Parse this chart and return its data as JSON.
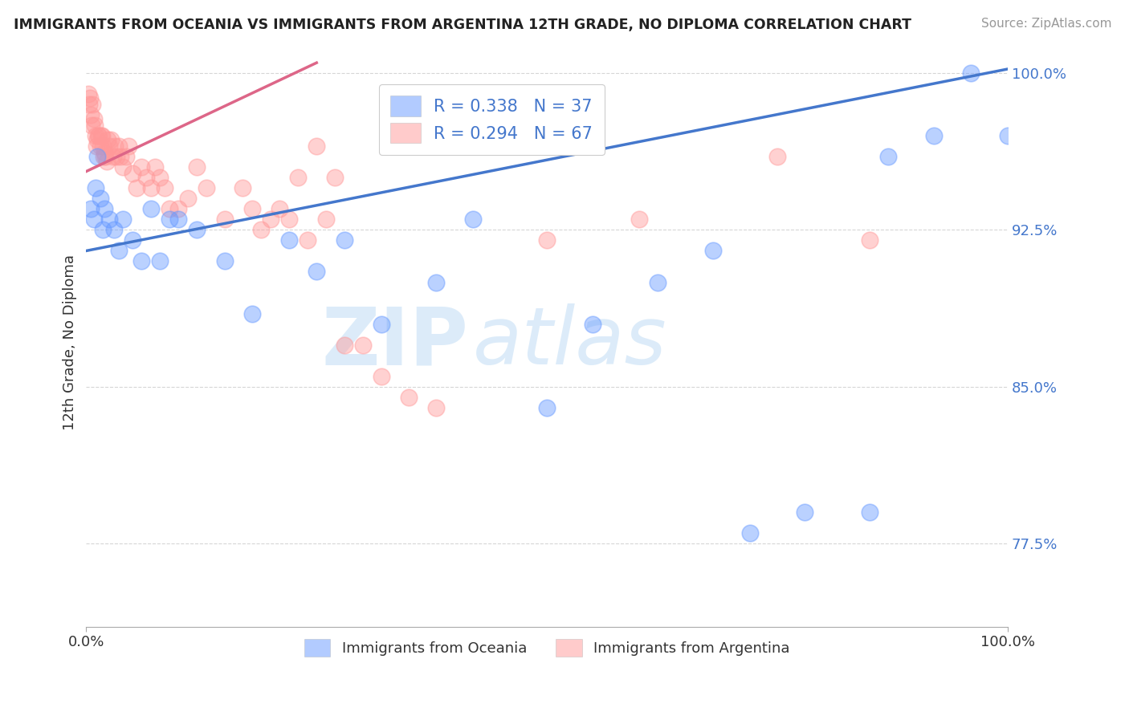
{
  "title": "IMMIGRANTS FROM OCEANIA VS IMMIGRANTS FROM ARGENTINA 12TH GRADE, NO DIPLOMA CORRELATION CHART",
  "source": "Source: ZipAtlas.com",
  "ylabel": "12th Grade, No Diploma",
  "series1_label": "Immigrants from Oceania",
  "series2_label": "Immigrants from Argentina",
  "series1_color": "#6699ff",
  "series2_color": "#ff9999",
  "series1_R": 0.338,
  "series1_N": 37,
  "series2_R": 0.294,
  "series2_N": 67,
  "xmin": 0.0,
  "xmax": 1.0,
  "ymin": 0.735,
  "ymax": 1.007,
  "yticks": [
    0.775,
    0.85,
    0.925,
    1.0
  ],
  "ytick_labels": [
    "77.5%",
    "85.0%",
    "92.5%",
    "100.0%"
  ],
  "background_color": "#ffffff",
  "watermark_zip": "ZIP",
  "watermark_atlas": "atlas",
  "trend1_x0": 0.0,
  "trend1_y0": 0.915,
  "trend1_x1": 1.0,
  "trend1_y1": 1.002,
  "trend2_x0": 0.0,
  "trend2_y0": 0.953,
  "trend2_x1": 0.25,
  "trend2_y1": 1.005,
  "series1_x": [
    0.005,
    0.008,
    0.01,
    0.012,
    0.015,
    0.018,
    0.02,
    0.025,
    0.03,
    0.035,
    0.04,
    0.05,
    0.06,
    0.07,
    0.08,
    0.09,
    0.1,
    0.12,
    0.15,
    0.18,
    0.22,
    0.25,
    0.28,
    0.32,
    0.38,
    0.42,
    0.5,
    0.55,
    0.62,
    0.68,
    0.72,
    0.78,
    0.85,
    0.87,
    0.92,
    0.96,
    1.0
  ],
  "series1_y": [
    0.935,
    0.93,
    0.945,
    0.96,
    0.94,
    0.925,
    0.935,
    0.93,
    0.925,
    0.915,
    0.93,
    0.92,
    0.91,
    0.935,
    0.91,
    0.93,
    0.93,
    0.925,
    0.91,
    0.885,
    0.92,
    0.905,
    0.92,
    0.88,
    0.9,
    0.93,
    0.84,
    0.88,
    0.9,
    0.915,
    0.78,
    0.79,
    0.79,
    0.96,
    0.97,
    1.0,
    0.97
  ],
  "series2_x": [
    0.002,
    0.003,
    0.004,
    0.005,
    0.006,
    0.007,
    0.008,
    0.009,
    0.01,
    0.011,
    0.012,
    0.013,
    0.014,
    0.015,
    0.016,
    0.017,
    0.018,
    0.019,
    0.02,
    0.021,
    0.022,
    0.023,
    0.025,
    0.027,
    0.029,
    0.031,
    0.033,
    0.035,
    0.037,
    0.04,
    0.043,
    0.046,
    0.05,
    0.055,
    0.06,
    0.065,
    0.07,
    0.075,
    0.08,
    0.085,
    0.09,
    0.1,
    0.11,
    0.12,
    0.13,
    0.15,
    0.17,
    0.18,
    0.19,
    0.2,
    0.21,
    0.22,
    0.23,
    0.24,
    0.25,
    0.26,
    0.27,
    0.28,
    0.3,
    0.32,
    0.35,
    0.38,
    0.42,
    0.5,
    0.6,
    0.75,
    0.85
  ],
  "series2_y": [
    0.99,
    0.985,
    0.988,
    0.98,
    0.975,
    0.985,
    0.978,
    0.975,
    0.97,
    0.965,
    0.968,
    0.97,
    0.97,
    0.965,
    0.97,
    0.97,
    0.965,
    0.96,
    0.962,
    0.96,
    0.958,
    0.968,
    0.965,
    0.968,
    0.96,
    0.965,
    0.96,
    0.965,
    0.96,
    0.955,
    0.96,
    0.965,
    0.952,
    0.945,
    0.955,
    0.95,
    0.945,
    0.955,
    0.95,
    0.945,
    0.935,
    0.935,
    0.94,
    0.955,
    0.945,
    0.93,
    0.945,
    0.935,
    0.925,
    0.93,
    0.935,
    0.93,
    0.95,
    0.92,
    0.965,
    0.93,
    0.95,
    0.87,
    0.87,
    0.855,
    0.845,
    0.84,
    0.965,
    0.92,
    0.93,
    0.96,
    0.92
  ]
}
